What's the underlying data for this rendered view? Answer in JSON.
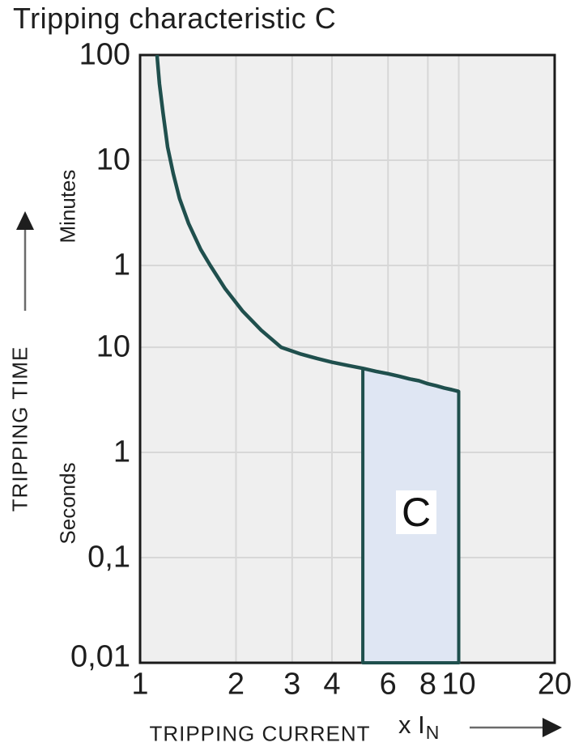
{
  "title": "Tripping characteristic C",
  "colors": {
    "curve": "#1f4f4d",
    "region_fill": "#dfe6f3",
    "plot_background": "#efefef",
    "gridline": "#d7d7d7",
    "frame": "#1a1a1a",
    "text": "#1e1e1e",
    "arrow_stem": "#6b6b6b",
    "arrow_head": "#1e1e1e"
  },
  "chart_data": {
    "type": "line",
    "title": "Tripping characteristic C",
    "x_axis": {
      "label": "TRIPPING CURRENT",
      "unit": "x I",
      "unit_subscript": "N",
      "scale": "log",
      "min": 1,
      "max": 20,
      "ticks": [
        {
          "label": "1",
          "value": 1
        },
        {
          "label": "2",
          "value": 2
        },
        {
          "label": "3",
          "value": 3
        },
        {
          "label": "4",
          "value": 4
        },
        {
          "label": "6",
          "value": 6
        },
        {
          "label": "8",
          "value": 8
        },
        {
          "label": "10",
          "value": 10
        },
        {
          "label": "20",
          "value": 20
        }
      ],
      "gridline_values": [
        2,
        3,
        4,
        6,
        8,
        10
      ]
    },
    "y_axis": {
      "label": "TRIPPING TIME",
      "scale": "log",
      "unit_upper": "Minutes",
      "unit_lower": "Seconds",
      "max_seconds": 6000,
      "min_seconds": 0.01,
      "ticks": [
        {
          "label": "100",
          "seconds": 6000
        },
        {
          "label": "10",
          "seconds": 600
        },
        {
          "label": "1",
          "seconds": 60
        },
        {
          "label": "10",
          "seconds": 10
        },
        {
          "label": "1",
          "seconds": 1
        },
        {
          "label": "0,1",
          "seconds": 0.1
        },
        {
          "label": "0,01",
          "seconds": 0.01
        }
      ],
      "gridline_seconds": [
        600,
        60,
        10,
        1,
        0.1
      ]
    },
    "series": [
      {
        "name": "tripping-curve",
        "points": [
          [
            1.13,
            6000
          ],
          [
            1.15,
            3200
          ],
          [
            1.18,
            1700
          ],
          [
            1.22,
            800
          ],
          [
            1.27,
            450
          ],
          [
            1.33,
            260
          ],
          [
            1.42,
            150
          ],
          [
            1.55,
            85
          ],
          [
            1.66,
            60
          ],
          [
            1.85,
            36
          ],
          [
            2.1,
            22
          ],
          [
            2.4,
            14.5
          ],
          [
            2.77,
            10
          ],
          [
            3.2,
            8.6
          ],
          [
            3.6,
            7.8
          ],
          [
            4.0,
            7.2
          ],
          [
            4.5,
            6.7
          ],
          [
            5.0,
            6.3
          ],
          [
            5.5,
            5.9
          ],
          [
            6.0,
            5.6
          ],
          [
            6.5,
            5.3
          ],
          [
            7.0,
            5.0
          ],
          [
            7.5,
            4.8
          ],
          [
            8.0,
            4.5
          ],
          [
            8.5,
            4.3
          ],
          [
            9.0,
            4.1
          ],
          [
            9.5,
            3.95
          ],
          [
            10.0,
            3.8
          ]
        ]
      }
    ],
    "region": {
      "label": "C",
      "x_min": 5,
      "x_max": 10,
      "bottom_seconds": 0.01,
      "top_follows_curve": true
    }
  }
}
